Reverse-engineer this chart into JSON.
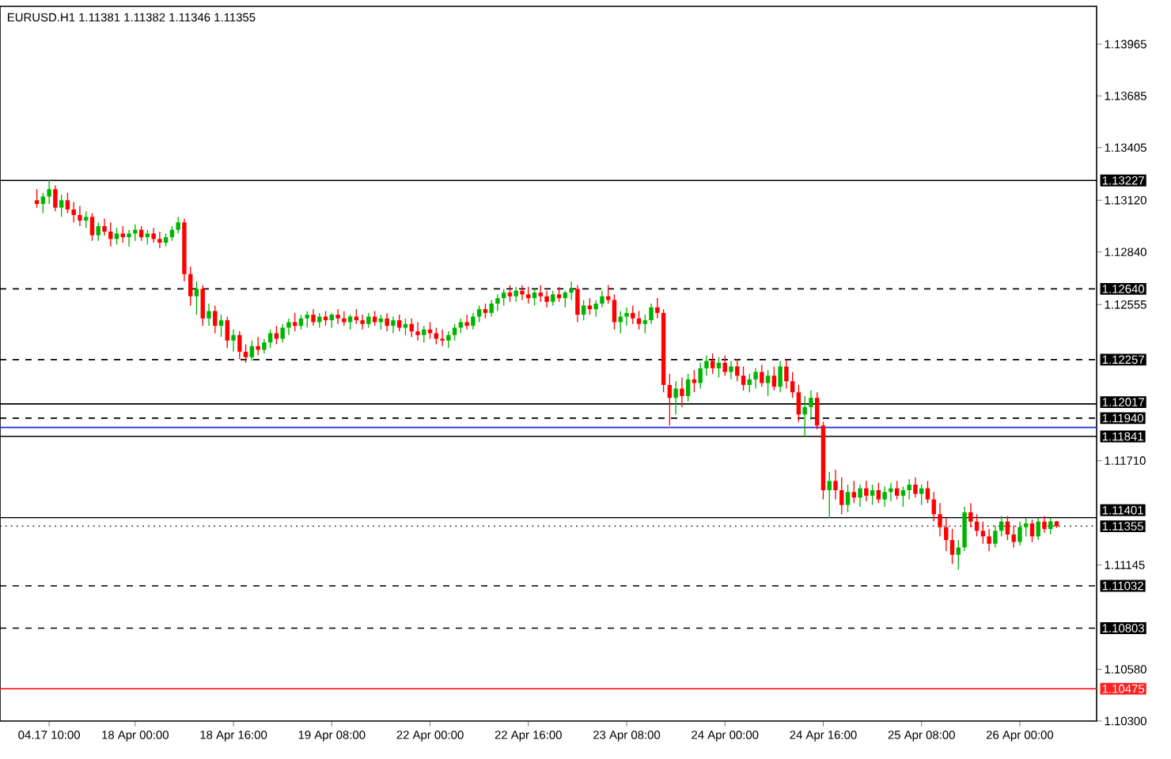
{
  "chart_data": {
    "type": "candlestick",
    "title": "EURUSD.H1  1.11381 1.11382 1.11346 1.11355",
    "categories": [
      null,
      null,
      "04.17 10:00",
      null,
      null,
      null,
      null,
      null,
      null,
      null,
      null,
      null,
      null,
      null,
      null,
      null,
      "18 Apr 00:00",
      null,
      null,
      null,
      null,
      null,
      null,
      null,
      null,
      null,
      null,
      null,
      null,
      null,
      null,
      null,
      "18 Apr 16:00",
      null,
      null,
      null,
      null,
      null,
      null,
      null,
      null,
      null,
      null,
      null,
      null,
      null,
      null,
      null,
      "19 Apr 08:00",
      null,
      null,
      null,
      null,
      null,
      null,
      null,
      null,
      null,
      null,
      null,
      null,
      null,
      null,
      null,
      "22 Apr 00:00",
      null,
      null,
      null,
      null,
      null,
      null,
      null,
      null,
      null,
      null,
      null,
      null,
      null,
      null,
      null,
      "22 Apr 16:00",
      null,
      null,
      null,
      null,
      null,
      null,
      null,
      null,
      null,
      null,
      null,
      null,
      null,
      null,
      null,
      "23 Apr 08:00",
      null,
      null,
      null,
      null,
      null,
      null,
      null,
      null,
      null,
      null,
      null,
      null,
      null,
      null,
      null,
      "24 Apr 00:00",
      null,
      null,
      null,
      null,
      null,
      null,
      null,
      null,
      null,
      null,
      null,
      null,
      null,
      null,
      null,
      "24 Apr 16:00",
      null,
      null,
      null,
      null,
      null,
      null,
      null,
      null,
      null,
      null,
      null,
      null,
      null,
      null,
      null,
      "25 Apr 08:00",
      null,
      null,
      null,
      null,
      null,
      null,
      null,
      null,
      null,
      null,
      null,
      null,
      null,
      null,
      null,
      "26 Apr 00:00",
      null,
      null,
      null,
      null,
      null,
      null
    ],
    "ohlc": [
      [
        1.1312,
        1.1318,
        1.1308,
        1.131
      ],
      [
        1.131,
        1.1316,
        1.1305,
        1.1314
      ],
      [
        1.1314,
        1.1323,
        1.131,
        1.1318
      ],
      [
        1.1318,
        1.132,
        1.1306,
        1.1308
      ],
      [
        1.1308,
        1.1315,
        1.1303,
        1.1312
      ],
      [
        1.1312,
        1.1316,
        1.1305,
        1.1307
      ],
      [
        1.1307,
        1.1311,
        1.13,
        1.1304
      ],
      [
        1.1304,
        1.1309,
        1.1298,
        1.1301
      ],
      [
        1.1301,
        1.1306,
        1.1297,
        1.1303
      ],
      [
        1.1303,
        1.1305,
        1.129,
        1.1293
      ],
      [
        1.1293,
        1.13,
        1.129,
        1.1298
      ],
      [
        1.1298,
        1.1302,
        1.1293,
        1.1295
      ],
      [
        1.1295,
        1.13,
        1.1287,
        1.1291
      ],
      [
        1.1291,
        1.1297,
        1.1288,
        1.1294
      ],
      [
        1.1294,
        1.1298,
        1.1289,
        1.1292
      ],
      [
        1.1292,
        1.1296,
        1.1287,
        1.1294
      ],
      [
        1.1294,
        1.1299,
        1.129,
        1.1296
      ],
      [
        1.1296,
        1.1298,
        1.129,
        1.1292
      ],
      [
        1.1292,
        1.1296,
        1.1288,
        1.1294
      ],
      [
        1.1294,
        1.1297,
        1.1289,
        1.1291
      ],
      [
        1.1291,
        1.1295,
        1.1286,
        1.1289
      ],
      [
        1.1289,
        1.1294,
        1.1287,
        1.1292
      ],
      [
        1.1292,
        1.1298,
        1.129,
        1.1296
      ],
      [
        1.1296,
        1.1303,
        1.1294,
        1.13
      ],
      [
        1.13,
        1.1302,
        1.1268,
        1.1272
      ],
      [
        1.1272,
        1.1276,
        1.1255,
        1.126
      ],
      [
        1.126,
        1.1268,
        1.125,
        1.1264
      ],
      [
        1.1264,
        1.1266,
        1.1244,
        1.1248
      ],
      [
        1.1248,
        1.1256,
        1.1244,
        1.1252
      ],
      [
        1.1252,
        1.1255,
        1.124,
        1.1244
      ],
      [
        1.1244,
        1.125,
        1.1238,
        1.1247
      ],
      [
        1.1247,
        1.1249,
        1.1232,
        1.1236
      ],
      [
        1.1236,
        1.1242,
        1.123,
        1.1239
      ],
      [
        1.1239,
        1.1241,
        1.1226,
        1.123
      ],
      [
        1.123,
        1.1234,
        1.1224,
        1.1227
      ],
      [
        1.1227,
        1.1236,
        1.1225,
        1.1233
      ],
      [
        1.1233,
        1.1238,
        1.1228,
        1.1231
      ],
      [
        1.1231,
        1.1237,
        1.1229,
        1.1235
      ],
      [
        1.1235,
        1.1242,
        1.1232,
        1.124
      ],
      [
        1.124,
        1.1244,
        1.1234,
        1.1237
      ],
      [
        1.1237,
        1.1245,
        1.1235,
        1.1243
      ],
      [
        1.1243,
        1.1248,
        1.1239,
        1.1246
      ],
      [
        1.1246,
        1.1251,
        1.1241,
        1.1244
      ],
      [
        1.1244,
        1.125,
        1.1242,
        1.1248
      ],
      [
        1.1248,
        1.1252,
        1.1243,
        1.125
      ],
      [
        1.125,
        1.1253,
        1.1244,
        1.1246
      ],
      [
        1.1246,
        1.1251,
        1.1243,
        1.1249
      ],
      [
        1.1249,
        1.1252,
        1.1244,
        1.1247
      ],
      [
        1.1247,
        1.1251,
        1.1243,
        1.125
      ],
      [
        1.125,
        1.1253,
        1.1245,
        1.1248
      ],
      [
        1.1248,
        1.1252,
        1.1244,
        1.1246
      ],
      [
        1.1246,
        1.125,
        1.1242,
        1.1249
      ],
      [
        1.1249,
        1.1253,
        1.1245,
        1.1247
      ],
      [
        1.1247,
        1.125,
        1.1242,
        1.1245
      ],
      [
        1.1245,
        1.1251,
        1.1243,
        1.1249
      ],
      [
        1.1249,
        1.1252,
        1.1244,
        1.1246
      ],
      [
        1.1246,
        1.125,
        1.1242,
        1.1248
      ],
      [
        1.1248,
        1.1251,
        1.1241,
        1.1244
      ],
      [
        1.1244,
        1.1249,
        1.124,
        1.1247
      ],
      [
        1.1247,
        1.125,
        1.1241,
        1.1243
      ],
      [
        1.1243,
        1.1248,
        1.1239,
        1.1245
      ],
      [
        1.1245,
        1.1248,
        1.1238,
        1.1241
      ],
      [
        1.1241,
        1.1246,
        1.1236,
        1.1239
      ],
      [
        1.1239,
        1.1244,
        1.1235,
        1.1242
      ],
      [
        1.1242,
        1.1246,
        1.1237,
        1.124
      ],
      [
        1.124,
        1.1243,
        1.1234,
        1.1237
      ],
      [
        1.1237,
        1.1242,
        1.1233,
        1.1236
      ],
      [
        1.1236,
        1.1241,
        1.1232,
        1.1239
      ],
      [
        1.1239,
        1.1245,
        1.1236,
        1.1243
      ],
      [
        1.1243,
        1.1248,
        1.124,
        1.1246
      ],
      [
        1.1246,
        1.125,
        1.1242,
        1.1244
      ],
      [
        1.1244,
        1.1251,
        1.1242,
        1.1249
      ],
      [
        1.1249,
        1.1255,
        1.1246,
        1.1253
      ],
      [
        1.1253,
        1.1256,
        1.1248,
        1.1251
      ],
      [
        1.1251,
        1.1258,
        1.1249,
        1.1256
      ],
      [
        1.1256,
        1.1261,
        1.1252,
        1.1259
      ],
      [
        1.1259,
        1.1264,
        1.1255,
        1.1262
      ],
      [
        1.1262,
        1.1266,
        1.1257,
        1.126
      ],
      [
        1.126,
        1.1265,
        1.1257,
        1.1263
      ],
      [
        1.1263,
        1.1266,
        1.1258,
        1.1261
      ],
      [
        1.1261,
        1.1265,
        1.1256,
        1.1259
      ],
      [
        1.1259,
        1.1264,
        1.1255,
        1.1262
      ],
      [
        1.1262,
        1.1266,
        1.1257,
        1.126
      ],
      [
        1.126,
        1.1263,
        1.1254,
        1.1257
      ],
      [
        1.1257,
        1.1263,
        1.1255,
        1.1261
      ],
      [
        1.1261,
        1.1265,
        1.1257,
        1.1259
      ],
      [
        1.1259,
        1.1263,
        1.1254,
        1.1262
      ],
      [
        1.1262,
        1.1268,
        1.1258,
        1.1264
      ],
      [
        1.1264,
        1.1266,
        1.1246,
        1.125
      ],
      [
        1.125,
        1.1258,
        1.1247,
        1.1255
      ],
      [
        1.1255,
        1.1259,
        1.125,
        1.1253
      ],
      [
        1.1253,
        1.1258,
        1.1249,
        1.1256
      ],
      [
        1.1256,
        1.1263,
        1.1254,
        1.126
      ],
      [
        1.126,
        1.1266,
        1.1256,
        1.1258
      ],
      [
        1.1258,
        1.1261,
        1.1242,
        1.1246
      ],
      [
        1.1246,
        1.1252,
        1.124,
        1.1249
      ],
      [
        1.1249,
        1.1254,
        1.1244,
        1.1251
      ],
      [
        1.1251,
        1.1255,
        1.1245,
        1.1248
      ],
      [
        1.1248,
        1.1252,
        1.1242,
        1.1245
      ],
      [
        1.1245,
        1.125,
        1.124,
        1.1247
      ],
      [
        1.1247,
        1.1256,
        1.1245,
        1.1254
      ],
      [
        1.1254,
        1.1259,
        1.1248,
        1.1251
      ],
      [
        1.1251,
        1.1253,
        1.1208,
        1.1212
      ],
      [
        1.1212,
        1.1218,
        1.119,
        1.1205
      ],
      [
        1.1205,
        1.1214,
        1.1196,
        1.121
      ],
      [
        1.121,
        1.1216,
        1.12,
        1.1206
      ],
      [
        1.1206,
        1.1218,
        1.1203,
        1.1215
      ],
      [
        1.1215,
        1.122,
        1.1208,
        1.1213
      ],
      [
        1.1213,
        1.1224,
        1.121,
        1.1221
      ],
      [
        1.1221,
        1.1228,
        1.1217,
        1.1225
      ],
      [
        1.1225,
        1.1229,
        1.1218,
        1.1221
      ],
      [
        1.1221,
        1.1227,
        1.1216,
        1.1224
      ],
      [
        1.1224,
        1.1228,
        1.1217,
        1.1219
      ],
      [
        1.1219,
        1.1225,
        1.1215,
        1.1222
      ],
      [
        1.1222,
        1.1226,
        1.1214,
        1.1217
      ],
      [
        1.1217,
        1.1222,
        1.1209,
        1.1212
      ],
      [
        1.1212,
        1.1218,
        1.1208,
        1.1215
      ],
      [
        1.1215,
        1.1221,
        1.121,
        1.1219
      ],
      [
        1.1219,
        1.1223,
        1.1211,
        1.1213
      ],
      [
        1.1213,
        1.122,
        1.1206,
        1.1217
      ],
      [
        1.1217,
        1.1222,
        1.1209,
        1.1211
      ],
      [
        1.1211,
        1.1225,
        1.1208,
        1.1222
      ],
      [
        1.1222,
        1.1226,
        1.121,
        1.1214
      ],
      [
        1.1214,
        1.1219,
        1.1205,
        1.1208
      ],
      [
        1.1208,
        1.1212,
        1.1192,
        1.1196
      ],
      [
        1.1196,
        1.1206,
        1.1184,
        1.12
      ],
      [
        1.12,
        1.1209,
        1.1193,
        1.1205
      ],
      [
        1.1205,
        1.1208,
        1.1188,
        1.119
      ],
      [
        1.119,
        1.1192,
        1.115,
        1.1155
      ],
      [
        1.1155,
        1.1165,
        1.114,
        1.116
      ],
      [
        1.116,
        1.1166,
        1.115,
        1.1155
      ],
      [
        1.1155,
        1.1162,
        1.1142,
        1.1147
      ],
      [
        1.1147,
        1.1158,
        1.1143,
        1.1154
      ],
      [
        1.1154,
        1.116,
        1.1148,
        1.1151
      ],
      [
        1.1151,
        1.1158,
        1.1146,
        1.1156
      ],
      [
        1.1156,
        1.116,
        1.1149,
        1.1152
      ],
      [
        1.1152,
        1.1158,
        1.1147,
        1.1155
      ],
      [
        1.1155,
        1.1159,
        1.1148,
        1.115
      ],
      [
        1.115,
        1.1157,
        1.1146,
        1.1154
      ],
      [
        1.1154,
        1.1159,
        1.1149,
        1.1156
      ],
      [
        1.1156,
        1.116,
        1.115,
        1.1152
      ],
      [
        1.1152,
        1.1157,
        1.1146,
        1.1155
      ],
      [
        1.1155,
        1.1161,
        1.115,
        1.1158
      ],
      [
        1.1158,
        1.1162,
        1.1151,
        1.1153
      ],
      [
        1.1153,
        1.1158,
        1.1147,
        1.1156
      ],
      [
        1.1156,
        1.116,
        1.1148,
        1.115
      ],
      [
        1.115,
        1.1154,
        1.1138,
        1.1142
      ],
      [
        1.1142,
        1.1148,
        1.113,
        1.1135
      ],
      [
        1.1135,
        1.114,
        1.1122,
        1.1128
      ],
      [
        1.1128,
        1.1134,
        1.1115,
        1.112
      ],
      [
        1.112,
        1.1128,
        1.1112,
        1.1124
      ],
      [
        1.1124,
        1.1146,
        1.1122,
        1.1143
      ],
      [
        1.1143,
        1.1148,
        1.1135,
        1.1138
      ],
      [
        1.1138,
        1.1142,
        1.113,
        1.1133
      ],
      [
        1.1133,
        1.1138,
        1.1126,
        1.113
      ],
      [
        1.113,
        1.1134,
        1.1122,
        1.1126
      ],
      [
        1.1126,
        1.1136,
        1.1124,
        1.1133
      ],
      [
        1.1133,
        1.1141,
        1.113,
        1.1138
      ],
      [
        1.1138,
        1.1141,
        1.1128,
        1.1131
      ],
      [
        1.1131,
        1.1136,
        1.1124,
        1.1127
      ],
      [
        1.1127,
        1.1138,
        1.1125,
        1.1135
      ],
      [
        1.1135,
        1.114,
        1.113,
        1.1137
      ],
      [
        1.1137,
        1.1139,
        1.1127,
        1.113
      ],
      [
        1.113,
        1.114,
        1.1128,
        1.1138
      ],
      [
        1.1138,
        1.1141,
        1.1132,
        1.1134
      ],
      [
        1.1134,
        1.114,
        1.1131,
        1.11381
      ],
      [
        1.11381,
        1.11382,
        1.11346,
        1.11355
      ]
    ],
    "ylim": [
      1.103,
      1.1417
    ],
    "yticks": [
      1.13965,
      1.13685,
      1.13405,
      {
        "value": 1.1312,
        "label": "1.13120"
      },
      {
        "value": 1.1284,
        "label": "1.12840"
      },
      1.12555,
      {
        "value": 1.1171,
        "label": "1.11710"
      },
      1.11145,
      {
        "value": 1.1058,
        "label": "1.10580"
      },
      {
        "value": 1.103,
        "label": "1.10300"
      }
    ],
    "ref_lines": [
      {
        "axis": "y",
        "value": 1.13227,
        "label": "1.13227",
        "color": "#000000",
        "line_style": "solid"
      },
      {
        "axis": "y",
        "value": 1.1264,
        "label": "1.12640",
        "color": "#000000",
        "line_style": "dashed"
      },
      {
        "axis": "y",
        "value": 1.12257,
        "label": "1.12257",
        "color": "#000000",
        "line_style": "dashed"
      },
      {
        "axis": "y",
        "value": 1.12017,
        "label": "1.12017",
        "color": "#000000",
        "line_style": "solid"
      },
      {
        "axis": "y",
        "value": 1.1194,
        "label": "1.11940",
        "color": "#000000",
        "line_style": "dashed"
      },
      {
        "axis": "y",
        "value": 1.1189,
        "color": "#1f2fd0",
        "line_style": "solid"
      },
      {
        "axis": "y",
        "value": 1.11841,
        "label": "1.11841",
        "color": "#000000",
        "line_style": "solid"
      },
      {
        "axis": "y",
        "value": 1.11401,
        "label": "1.11401",
        "color": "#000000",
        "line_style": "solid"
      },
      {
        "axis": "y",
        "value": 1.11355,
        "label": "1.11355",
        "color": "#000000",
        "line_style": "dotted"
      },
      {
        "axis": "y",
        "value": 1.11032,
        "label": "1.11032",
        "color": "#000000",
        "line_style": "dashed"
      },
      {
        "axis": "y",
        "value": 1.10803,
        "label": "1.10803",
        "color": "#000000",
        "line_style": "dashed"
      },
      {
        "axis": "y",
        "value": 1.10475,
        "label": "1.10475",
        "color": "#ff2020",
        "line_style": "solid"
      }
    ]
  }
}
